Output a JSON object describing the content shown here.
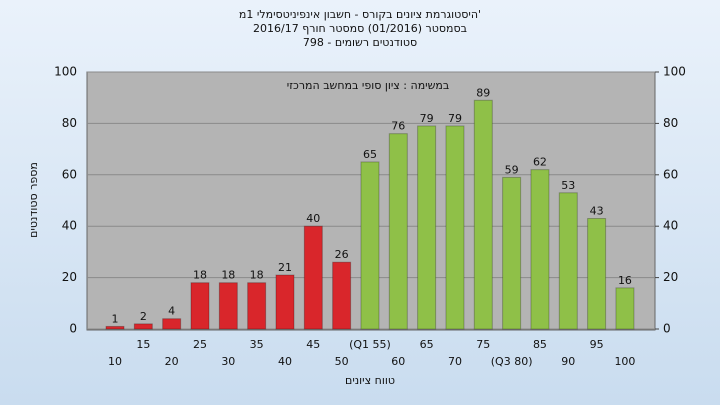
{
  "chart_data": {
    "type": "bar",
    "title": "היסטוגרמת ציונים בקורס - חשבון אינפיניטסימלי 1מ'",
    "subtitle": "בסמסטר  (01/2016)  סמסטר חורף 2016/17",
    "subtitle2": "סטודנטים רשומים - 798",
    "annotation": "במשימה : ציון סופי במחשב המרכזי",
    "y_label": "מספר סטודנטים",
    "x_label": "טווח ציונים",
    "categories": [
      "10",
      "15",
      "20",
      "25",
      "30",
      "35",
      "40",
      "45",
      "50",
      "(Q1 55)",
      "60",
      "65",
      "70",
      "75",
      "(Q3 80)",
      "85",
      "90",
      "95",
      "100"
    ],
    "values": [
      1,
      2,
      4,
      18,
      18,
      18,
      21,
      40,
      26,
      65,
      76,
      79,
      79,
      89,
      59,
      62,
      53,
      43,
      16
    ],
    "colors": [
      "#d9262b",
      "#d9262b",
      "#d9262b",
      "#d9262b",
      "#d9262b",
      "#d9262b",
      "#d9262b",
      "#d9262b",
      "#d9262b",
      "#8fc048",
      "#8fc048",
      "#8fc048",
      "#8fc048",
      "#8fc048",
      "#8fc048",
      "#8fc048",
      "#8fc048",
      "#8fc048",
      "#8fc048"
    ],
    "ylim": [
      0,
      100
    ],
    "yticks": [
      0,
      20,
      40,
      60,
      80,
      100
    ],
    "y2lim": [
      0,
      100
    ],
    "y2ticks": [
      0,
      20,
      40,
      60,
      80,
      100
    ],
    "grid": true
  }
}
